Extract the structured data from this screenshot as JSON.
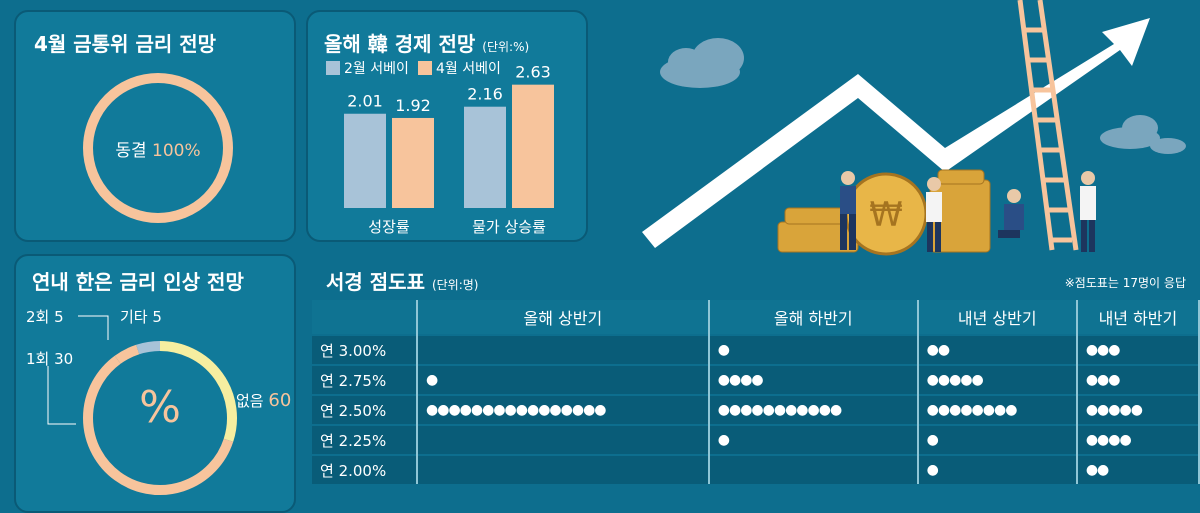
{
  "panel1": {
    "title": "4월 금통위 금리 전망",
    "center_label": "동결",
    "center_value": "100%"
  },
  "panel2": {
    "title": "올해 韓 경제 전망",
    "unit": "(단위:%)",
    "legend": [
      "2월 서베이",
      "4월 서베이"
    ],
    "colors": {
      "feb": "#a8c3d8",
      "apr": "#f7c49c"
    }
  },
  "panel3": {
    "title": "연내 한은 금리 인상 전망",
    "center": "%",
    "labels": {
      "two": "2회 5",
      "etc": "기타 5",
      "one": "1회 30",
      "none_label": "없음",
      "none_value": "60"
    }
  },
  "dot_table": {
    "title": "서경 점도표",
    "unit": "(단위:명)",
    "note": "※점도표는 17명이 응답",
    "columns": [
      "올해 상반기",
      "올해 하반기",
      "내년 상반기",
      "내년 하반기"
    ],
    "rows": [
      {
        "label": "연 3.00%",
        "counts": [
          0,
          1,
          2,
          3
        ]
      },
      {
        "label": "연 2.75%",
        "counts": [
          1,
          4,
          5,
          3
        ]
      },
      {
        "label": "연 2.50%",
        "counts": [
          16,
          11,
          8,
          5
        ]
      },
      {
        "label": "연 2.25%",
        "counts": [
          0,
          1,
          1,
          4
        ]
      },
      {
        "label": "연 2.00%",
        "counts": [
          0,
          0,
          1,
          2
        ]
      }
    ]
  },
  "chart_data": [
    {
      "type": "pie",
      "labels": [
        "동결"
      ],
      "values": [
        100
      ]
    },
    {
      "type": "bar",
      "categories": [
        "성장률",
        "물가 상승률"
      ],
      "series": [
        {
          "name": "2월 서베이",
          "values": [
            2.01,
            2.16
          ]
        },
        {
          "name": "4월 서베이",
          "values": [
            1.92,
            2.63
          ]
        }
      ],
      "ylim": [
        0,
        2.9
      ]
    },
    {
      "type": "pie",
      "labels": [
        "2회",
        "기타",
        "1회",
        "없음"
      ],
      "values": [
        5,
        5,
        30,
        60
      ],
      "colors": [
        "#f7c49c",
        "#a8c3d8",
        "#f6eea0",
        "#f7c49c"
      ]
    }
  ]
}
